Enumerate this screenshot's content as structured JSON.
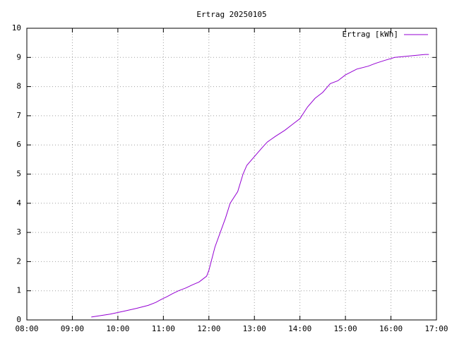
{
  "chart_data": {
    "type": "line",
    "title": "Ertrag 20250105",
    "x": [
      "09:25",
      "09:50",
      "10:08",
      "10:25",
      "10:40",
      "10:50",
      "10:57",
      "11:05",
      "11:12",
      "11:20",
      "11:30",
      "11:38",
      "11:47",
      "11:52",
      "11:57",
      "12:00",
      "12:03",
      "12:08",
      "12:15",
      "12:22",
      "12:28",
      "12:38",
      "12:45",
      "12:50",
      "13:00",
      "13:10",
      "13:17",
      "13:28",
      "13:40",
      "13:50",
      "14:00",
      "14:10",
      "14:20",
      "14:30",
      "14:40",
      "14:50",
      "15:00",
      "15:15",
      "15:30",
      "15:40",
      "15:52",
      "16:05",
      "16:45",
      "16:50"
    ],
    "series": [
      {
        "name": "Ertrag [kWh]",
        "color": "#9400d3",
        "values": [
          0.1,
          0.2,
          0.3,
          0.4,
          0.5,
          0.6,
          0.7,
          0.8,
          0.9,
          1.0,
          1.1,
          1.2,
          1.3,
          1.4,
          1.5,
          1.7,
          2.0,
          2.5,
          3.0,
          3.5,
          4.0,
          4.4,
          5.0,
          5.3,
          5.6,
          5.9,
          6.1,
          6.3,
          6.5,
          6.7,
          6.9,
          7.3,
          7.6,
          7.8,
          8.1,
          8.2,
          8.4,
          8.6,
          8.7,
          8.8,
          8.9,
          9.0,
          9.1,
          9.1
        ]
      }
    ],
    "xlim": [
      "08:00",
      "17:00"
    ],
    "xticks": [
      "08:00",
      "09:00",
      "10:00",
      "11:00",
      "12:00",
      "13:00",
      "14:00",
      "15:00",
      "16:00",
      "17:00"
    ],
    "ylim": [
      0,
      10
    ],
    "yticks": [
      0,
      1,
      2,
      3,
      4,
      5,
      6,
      7,
      8,
      9,
      10
    ],
    "grid": true,
    "legend": "top-right"
  }
}
